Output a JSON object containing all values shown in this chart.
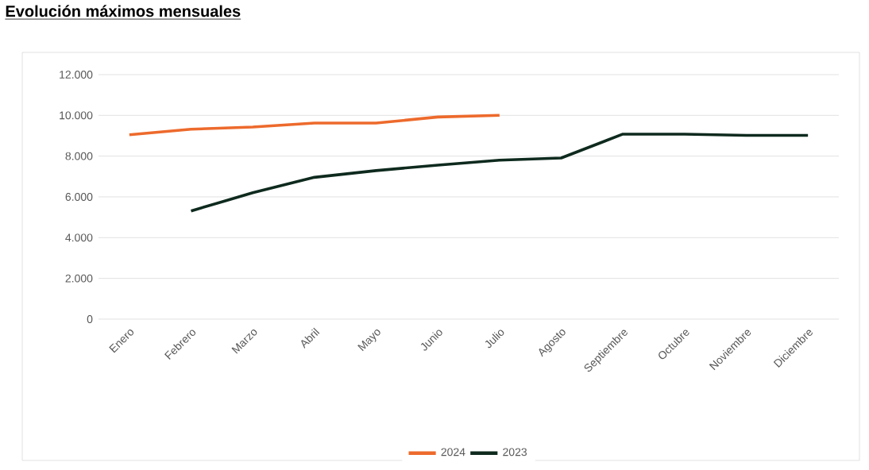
{
  "chart_data": {
    "type": "line",
    "title": "Evolución máximos mensuales",
    "categories": [
      "Enero",
      "Febrero",
      "Marzo",
      "Abril",
      "Mayo",
      "Junio",
      "Julio",
      "Agosto",
      "Septiembre",
      "Octubre",
      "Noviembre",
      "Diciembre"
    ],
    "series": [
      {
        "name": "2024",
        "color": "#ed6a2c",
        "values": [
          9050,
          9320,
          9430,
          9620,
          9620,
          9920,
          10000,
          null,
          null,
          null,
          null,
          null
        ]
      },
      {
        "name": "2023",
        "color": "#0e2a1e",
        "values": [
          null,
          5310,
          6200,
          6960,
          7290,
          7560,
          7800,
          7910,
          9080,
          9080,
          9020,
          9020
        ]
      }
    ],
    "ylim": [
      0,
      12000
    ],
    "yticks": [
      {
        "value": 0,
        "label": "0"
      },
      {
        "value": 2000,
        "label": "2.000"
      },
      {
        "value": 4000,
        "label": "4.000"
      },
      {
        "value": 6000,
        "label": "6.000"
      },
      {
        "value": 8000,
        "label": "8.000"
      },
      {
        "value": 10000,
        "label": "10.000"
      },
      {
        "value": 12000,
        "label": "12.000"
      }
    ],
    "grid": "y",
    "legend": "bottom",
    "marker": "none",
    "line_style": "solid"
  }
}
